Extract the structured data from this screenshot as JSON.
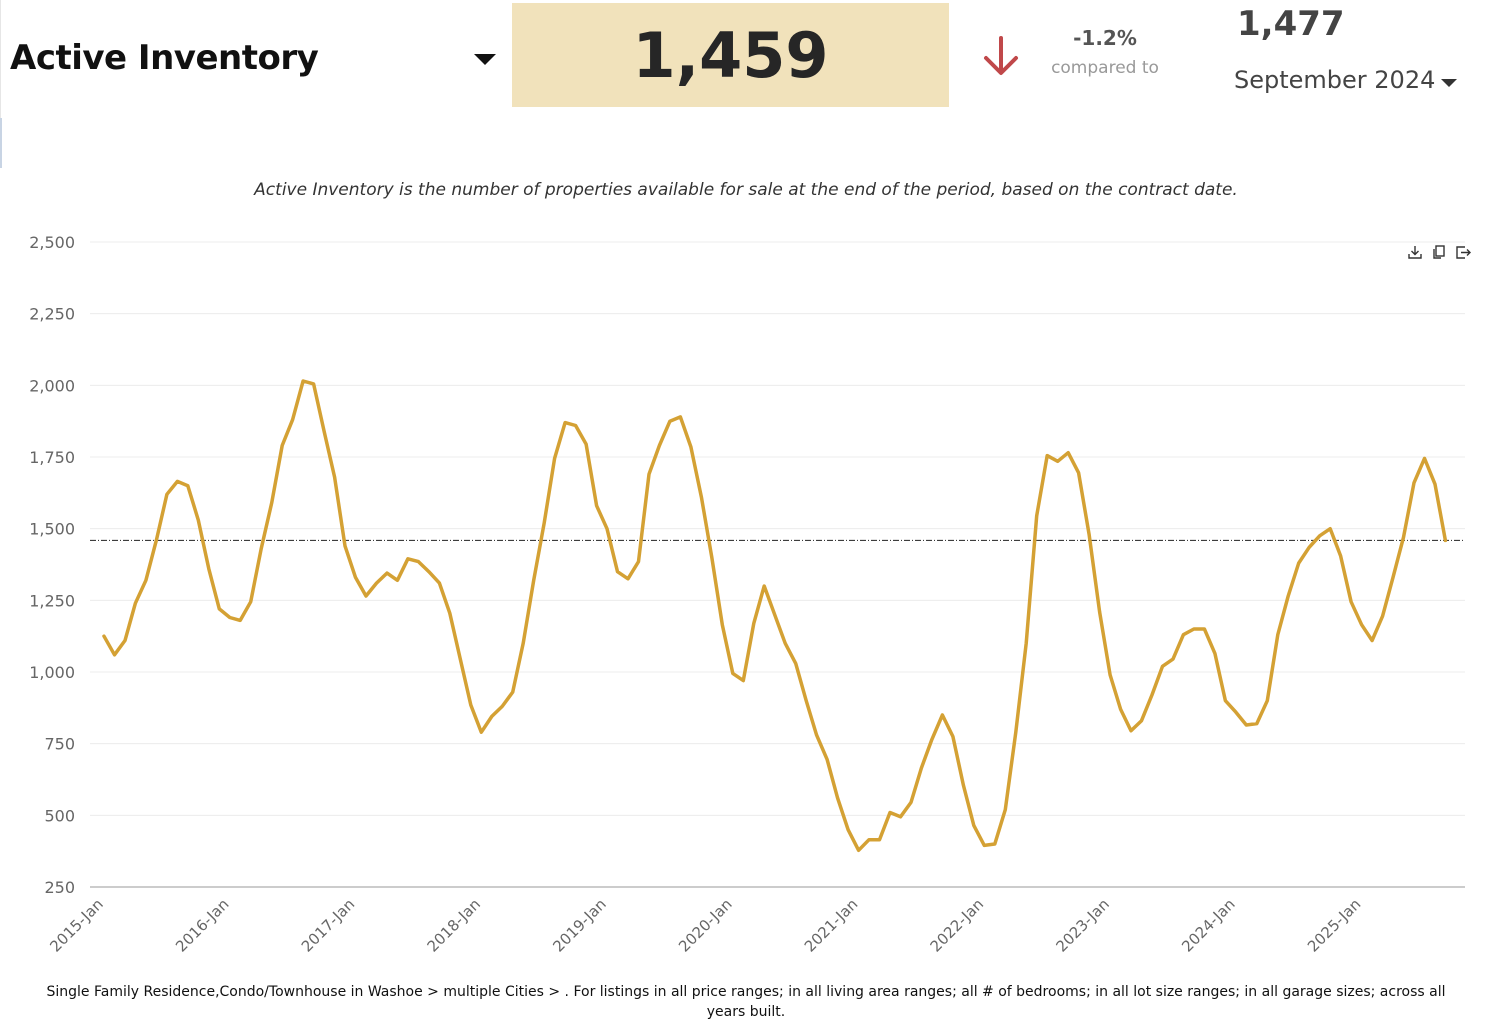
{
  "header": {
    "metric_label": "Active Inventory",
    "current_value": "1,459",
    "change_percent": "-1.2%",
    "compared_to_label": "compared to",
    "compare_value": "1,477",
    "compare_period": "September 2024"
  },
  "description": "Active Inventory is the number of properties available for sale at the end of the period, based on the contract date.",
  "footer_note": "Single Family Residence,Condo/Townhouse in Washoe > multiple Cities > . For listings in all price ranges; in all living area ranges; all # of bedrooms; in all lot size ranges; in all garage sizes; across all years built.",
  "colors": {
    "line": "#d4a134",
    "value_box": "#f1e2bb",
    "down_arrow": "#c0484a"
  },
  "icons": [
    "download-icon",
    "copy-icon",
    "export-icon"
  ],
  "chart_data": {
    "type": "line",
    "ylim": [
      250,
      2500
    ],
    "y_ticks": [
      250,
      500,
      750,
      1000,
      1250,
      1500,
      1750,
      2000,
      2250,
      2500
    ],
    "y_tick_labels": [
      "250",
      "500",
      "750",
      "1,000",
      "1,250",
      "1,500",
      "1,750",
      "2,000",
      "2,250",
      "2,500"
    ],
    "x_tick_labels": [
      "2015-Jan",
      "2016-Jan",
      "2017-Jan",
      "2018-Jan",
      "2019-Jan",
      "2020-Jan",
      "2021-Jan",
      "2022-Jan",
      "2023-Jan",
      "2024-Jan",
      "2025-Jan"
    ],
    "reference_line": 1459,
    "grid": true,
    "series": [
      {
        "values": [
          1125,
          1060,
          1110,
          1240,
          1320,
          1460,
          1620,
          1665,
          1650,
          1530,
          1360,
          1220,
          1190,
          1180,
          1245,
          1430,
          1590,
          1790,
          1880,
          2015,
          2005,
          1840,
          1680,
          1440,
          1330,
          1265,
          1310,
          1345,
          1320,
          1395,
          1385,
          1350,
          1310,
          1205,
          1045,
          885,
          790,
          845,
          880,
          930,
          1100,
          1320,
          1520,
          1745,
          1870,
          1860,
          1795,
          1580,
          1500,
          1350,
          1325,
          1385,
          1690,
          1790,
          1875,
          1890,
          1785,
          1610,
          1400,
          1165,
          995,
          970,
          1170,
          1300,
          1200,
          1100,
          1030,
          900,
          780,
          695,
          560,
          450,
          378,
          415,
          415,
          510,
          495,
          545,
          665,
          765,
          850,
          775,
          605,
          465,
          395,
          400,
          520,
          790,
          1100,
          1545,
          1755,
          1735,
          1765,
          1695,
          1480,
          1210,
          990,
          870,
          795,
          830,
          920,
          1020,
          1045,
          1130,
          1150,
          1150,
          1065,
          900,
          860,
          815,
          820,
          900,
          1130,
          1265,
          1380,
          1435,
          1475,
          1500,
          1405,
          1245,
          1165,
          1110,
          1195,
          1330,
          1470,
          1660,
          1745,
          1655,
          1459
        ]
      }
    ]
  }
}
